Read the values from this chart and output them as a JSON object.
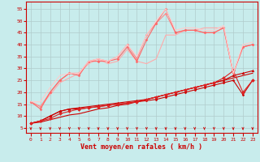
{
  "bg_color": "#c8ecec",
  "grid_color": "#b0cccc",
  "xlabel": "Vent moyen/en rafales ( km/h )",
  "xlabel_color": "#cc0000",
  "ylabel_ticks": [
    5,
    10,
    15,
    20,
    25,
    30,
    35,
    40,
    45,
    50,
    55
  ],
  "xlim": [
    -0.5,
    23.5
  ],
  "ylim": [
    3,
    58
  ],
  "xticks": [
    0,
    1,
    2,
    3,
    4,
    5,
    6,
    7,
    8,
    9,
    10,
    11,
    12,
    13,
    14,
    15,
    16,
    17,
    18,
    19,
    20,
    21,
    22,
    23
  ],
  "lines": [
    {
      "x": [
        0,
        1,
        2,
        3,
        4,
        5,
        6,
        7,
        8,
        9,
        10,
        11,
        12,
        13,
        14,
        15,
        16,
        17,
        18,
        19,
        20,
        21,
        22,
        23
      ],
      "y": [
        7,
        7.5,
        8.5,
        9.5,
        10.5,
        11,
        12,
        13,
        13.5,
        14.5,
        15,
        16,
        17,
        18,
        19,
        20,
        21,
        22,
        23,
        24,
        25,
        26,
        27,
        28
      ],
      "color": "#cc0000",
      "lw": 0.8,
      "marker": null
    },
    {
      "x": [
        0,
        1,
        2,
        3,
        4,
        5,
        6,
        7,
        8,
        9,
        10,
        11,
        12,
        13,
        14,
        15,
        16,
        17,
        18,
        19,
        20,
        21,
        22,
        23
      ],
      "y": [
        7,
        8,
        10,
        12,
        13,
        13,
        13.5,
        14,
        14.5,
        15,
        15.5,
        16,
        16.5,
        17,
        18,
        19,
        20,
        21,
        22,
        23,
        24,
        25,
        19,
        25
      ],
      "color": "#cc0000",
      "lw": 0.8,
      "marker": "D",
      "ms": 1.5
    },
    {
      "x": [
        0,
        1,
        2,
        3,
        4,
        5,
        6,
        7,
        8,
        9,
        10,
        11,
        12,
        13,
        14,
        15,
        16,
        17,
        18,
        19,
        20,
        21,
        22,
        23
      ],
      "y": [
        7,
        8,
        10,
        12,
        13,
        13.5,
        14,
        14.5,
        15,
        15.5,
        16,
        16.5,
        17,
        18,
        19,
        20,
        21,
        22,
        23,
        24,
        25,
        27,
        28,
        29
      ],
      "color": "#cc0000",
      "lw": 0.8,
      "marker": "^",
      "ms": 2.0
    },
    {
      "x": [
        0,
        1,
        2,
        3,
        4,
        5,
        6,
        7,
        8,
        9,
        10,
        11,
        12,
        13,
        14,
        15,
        16,
        17,
        18,
        19,
        20,
        21,
        22,
        23
      ],
      "y": [
        7,
        8,
        9,
        11,
        12,
        13,
        13.5,
        14,
        14.5,
        15,
        15.5,
        16,
        17,
        18,
        19,
        20,
        21,
        22,
        23,
        24,
        26,
        29,
        20,
        25
      ],
      "color": "#dd2222",
      "lw": 0.8,
      "marker": "D",
      "ms": 2.0
    },
    {
      "x": [
        0,
        1,
        2,
        3,
        4,
        5,
        6,
        7,
        8,
        9,
        10,
        11,
        12,
        13,
        14,
        15,
        16,
        17,
        18,
        19,
        20,
        21,
        22,
        23
      ],
      "y": [
        16,
        14,
        19,
        24,
        26,
        28,
        32,
        34,
        32,
        33,
        38,
        33,
        32,
        34,
        44,
        44,
        46,
        46,
        47,
        47,
        47,
        28,
        39,
        40
      ],
      "color": "#ffaaaa",
      "lw": 0.8,
      "marker": null
    },
    {
      "x": [
        0,
        1,
        2,
        3,
        4,
        5,
        6,
        7,
        8,
        9,
        10,
        11,
        12,
        13,
        14,
        15,
        16,
        17,
        18,
        19,
        20,
        21,
        22,
        23
      ],
      "y": [
        16,
        14,
        20,
        25,
        28,
        28,
        33,
        34,
        33,
        35,
        40,
        34,
        44,
        49,
        53,
        45,
        46,
        46,
        45,
        45,
        47,
        28,
        39,
        40
      ],
      "color": "#ff8888",
      "lw": 0.8,
      "marker": "D",
      "ms": 1.5
    },
    {
      "x": [
        0,
        1,
        2,
        3,
        4,
        5,
        6,
        7,
        8,
        9,
        10,
        11,
        12,
        13,
        14,
        15,
        16,
        17,
        18,
        19,
        20,
        21,
        22,
        23
      ],
      "y": [
        16,
        13,
        20,
        25,
        28,
        27,
        33,
        33,
        33,
        34,
        39,
        33,
        42,
        49,
        55,
        45,
        46,
        46,
        45,
        45,
        47,
        28,
        39,
        40
      ],
      "color": "#ff6666",
      "lw": 0.8,
      "marker": "D",
      "ms": 1.5
    },
    {
      "x": [
        0,
        1,
        2,
        3,
        4,
        5,
        6,
        7,
        8,
        9,
        10,
        11,
        12,
        13,
        14,
        15,
        16,
        17,
        18,
        19,
        20,
        21,
        22,
        23
      ],
      "y": [
        16,
        16,
        22,
        27,
        28,
        28,
        33,
        34,
        33,
        35,
        40,
        35,
        44,
        50,
        55,
        46,
        47,
        47,
        46,
        46,
        48,
        28,
        40,
        41
      ],
      "color": "#ffcccc",
      "lw": 0.8,
      "marker": null
    }
  ],
  "tick_fontsize": 4.5,
  "label_fontsize": 6.0,
  "tick_color": "#cc0000"
}
